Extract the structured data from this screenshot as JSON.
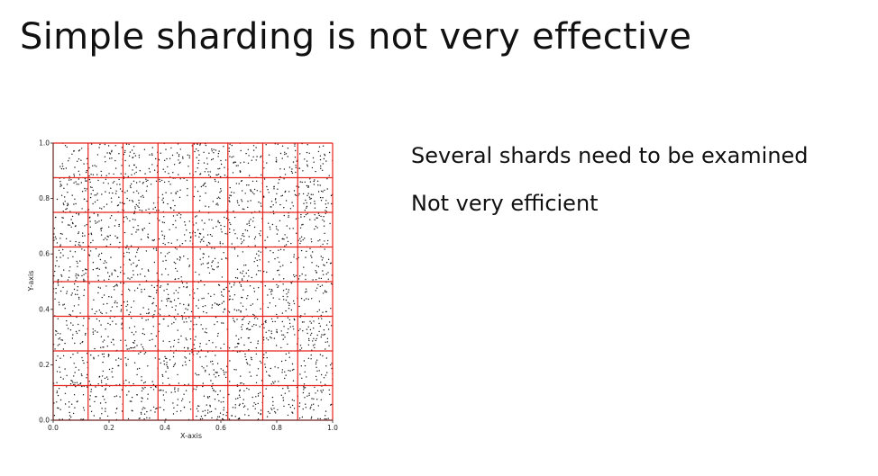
{
  "slide": {
    "title": "Simple sharding is not very effective",
    "bullets": [
      "Several shards need to be examined",
      "Not very efficient"
    ]
  },
  "chart_data": {
    "type": "scatter",
    "title": "",
    "xlabel": "X-axis",
    "ylabel": "Y-axis",
    "xlim": [
      0.0,
      1.0
    ],
    "ylim": [
      0.0,
      1.0
    ],
    "x_ticks": [
      "0.0",
      "0.2",
      "0.4",
      "0.6",
      "0.8",
      "1.0"
    ],
    "y_ticks": [
      "0.0",
      "0.2",
      "0.4",
      "0.6",
      "0.8",
      "1.0"
    ],
    "points": "approximately 2500 uniformly random points over the unit square",
    "point_color": "#111111",
    "grid_color": "#e8231b",
    "grid": {
      "type": "uniform shard grid",
      "rows": 8,
      "cols": 8,
      "x_edges": [
        0.0,
        0.125,
        0.25,
        0.375,
        0.5,
        0.625,
        0.75,
        0.875,
        1.0
      ],
      "y_edges": [
        0.0,
        0.125,
        0.25,
        0.375,
        0.5,
        0.625,
        0.75,
        0.875,
        1.0
      ]
    },
    "legend": "none"
  }
}
